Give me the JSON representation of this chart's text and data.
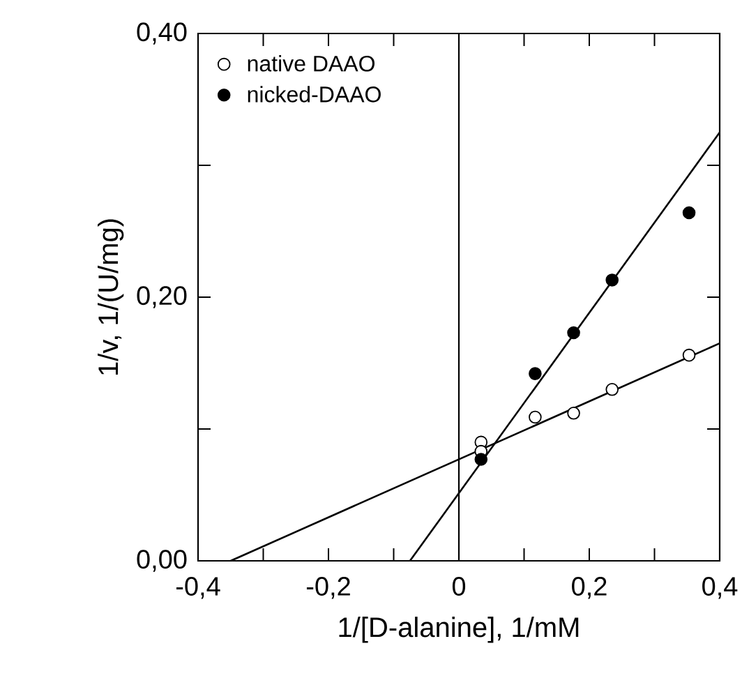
{
  "chart_data": {
    "type": "scatter",
    "xlabel": "1/[D-alanine], 1/mM",
    "ylabel": "1/v, 1/(U/mg)",
    "xlim": [
      -0.4,
      0.4
    ],
    "ylim": [
      0,
      0.4
    ],
    "xticks": [
      {
        "value": -0.4,
        "label": "-0,4"
      },
      {
        "value": -0.3,
        "label": null
      },
      {
        "value": -0.2,
        "label": "-0,2"
      },
      {
        "value": -0.1,
        "label": null
      },
      0,
      {
        "value": 0.1,
        "label": null
      },
      {
        "value": 0.2,
        "label": "0,2"
      },
      {
        "value": 0.3,
        "label": null
      },
      {
        "value": 0.4,
        "label": "0,4"
      }
    ],
    "yticks": [
      {
        "value": 0,
        "label": "0,00"
      },
      {
        "value": 0.1,
        "label": null
      },
      {
        "value": 0.2,
        "label": "0,20"
      },
      {
        "value": 0.3,
        "label": null
      },
      {
        "value": 0.4,
        "label": "0,40"
      }
    ],
    "legend": "top left",
    "marker": "circle",
    "grid": false,
    "ref_lines": [
      {
        "axis": "x",
        "value": 0,
        "color": "#000000"
      }
    ],
    "series": [
      {
        "name": "native DAAO",
        "color": "#ffffff",
        "x": [
          0.034,
          0.034,
          0.117,
          0.176,
          0.235,
          0.353
        ],
        "values": [
          0.09,
          0.083,
          0.109,
          0.112,
          0.13,
          0.156
        ]
      },
      {
        "name": "nicked-DAAO",
        "color": "#000000",
        "x": [
          0.034,
          0.117,
          0.176,
          0.235,
          0.353
        ],
        "values": [
          0.077,
          0.142,
          0.173,
          0.213,
          0.264
        ]
      },
      {
        "type": "line",
        "color": "#000000",
        "marker": "none",
        "x": [
          -0.35,
          0.4
        ],
        "values": [
          0,
          0.165
        ]
      },
      {
        "type": "line",
        "color": "#000000",
        "marker": "none",
        "x": [
          -0.075,
          0.4
        ],
        "values": [
          0,
          0.325
        ]
      }
    ]
  }
}
